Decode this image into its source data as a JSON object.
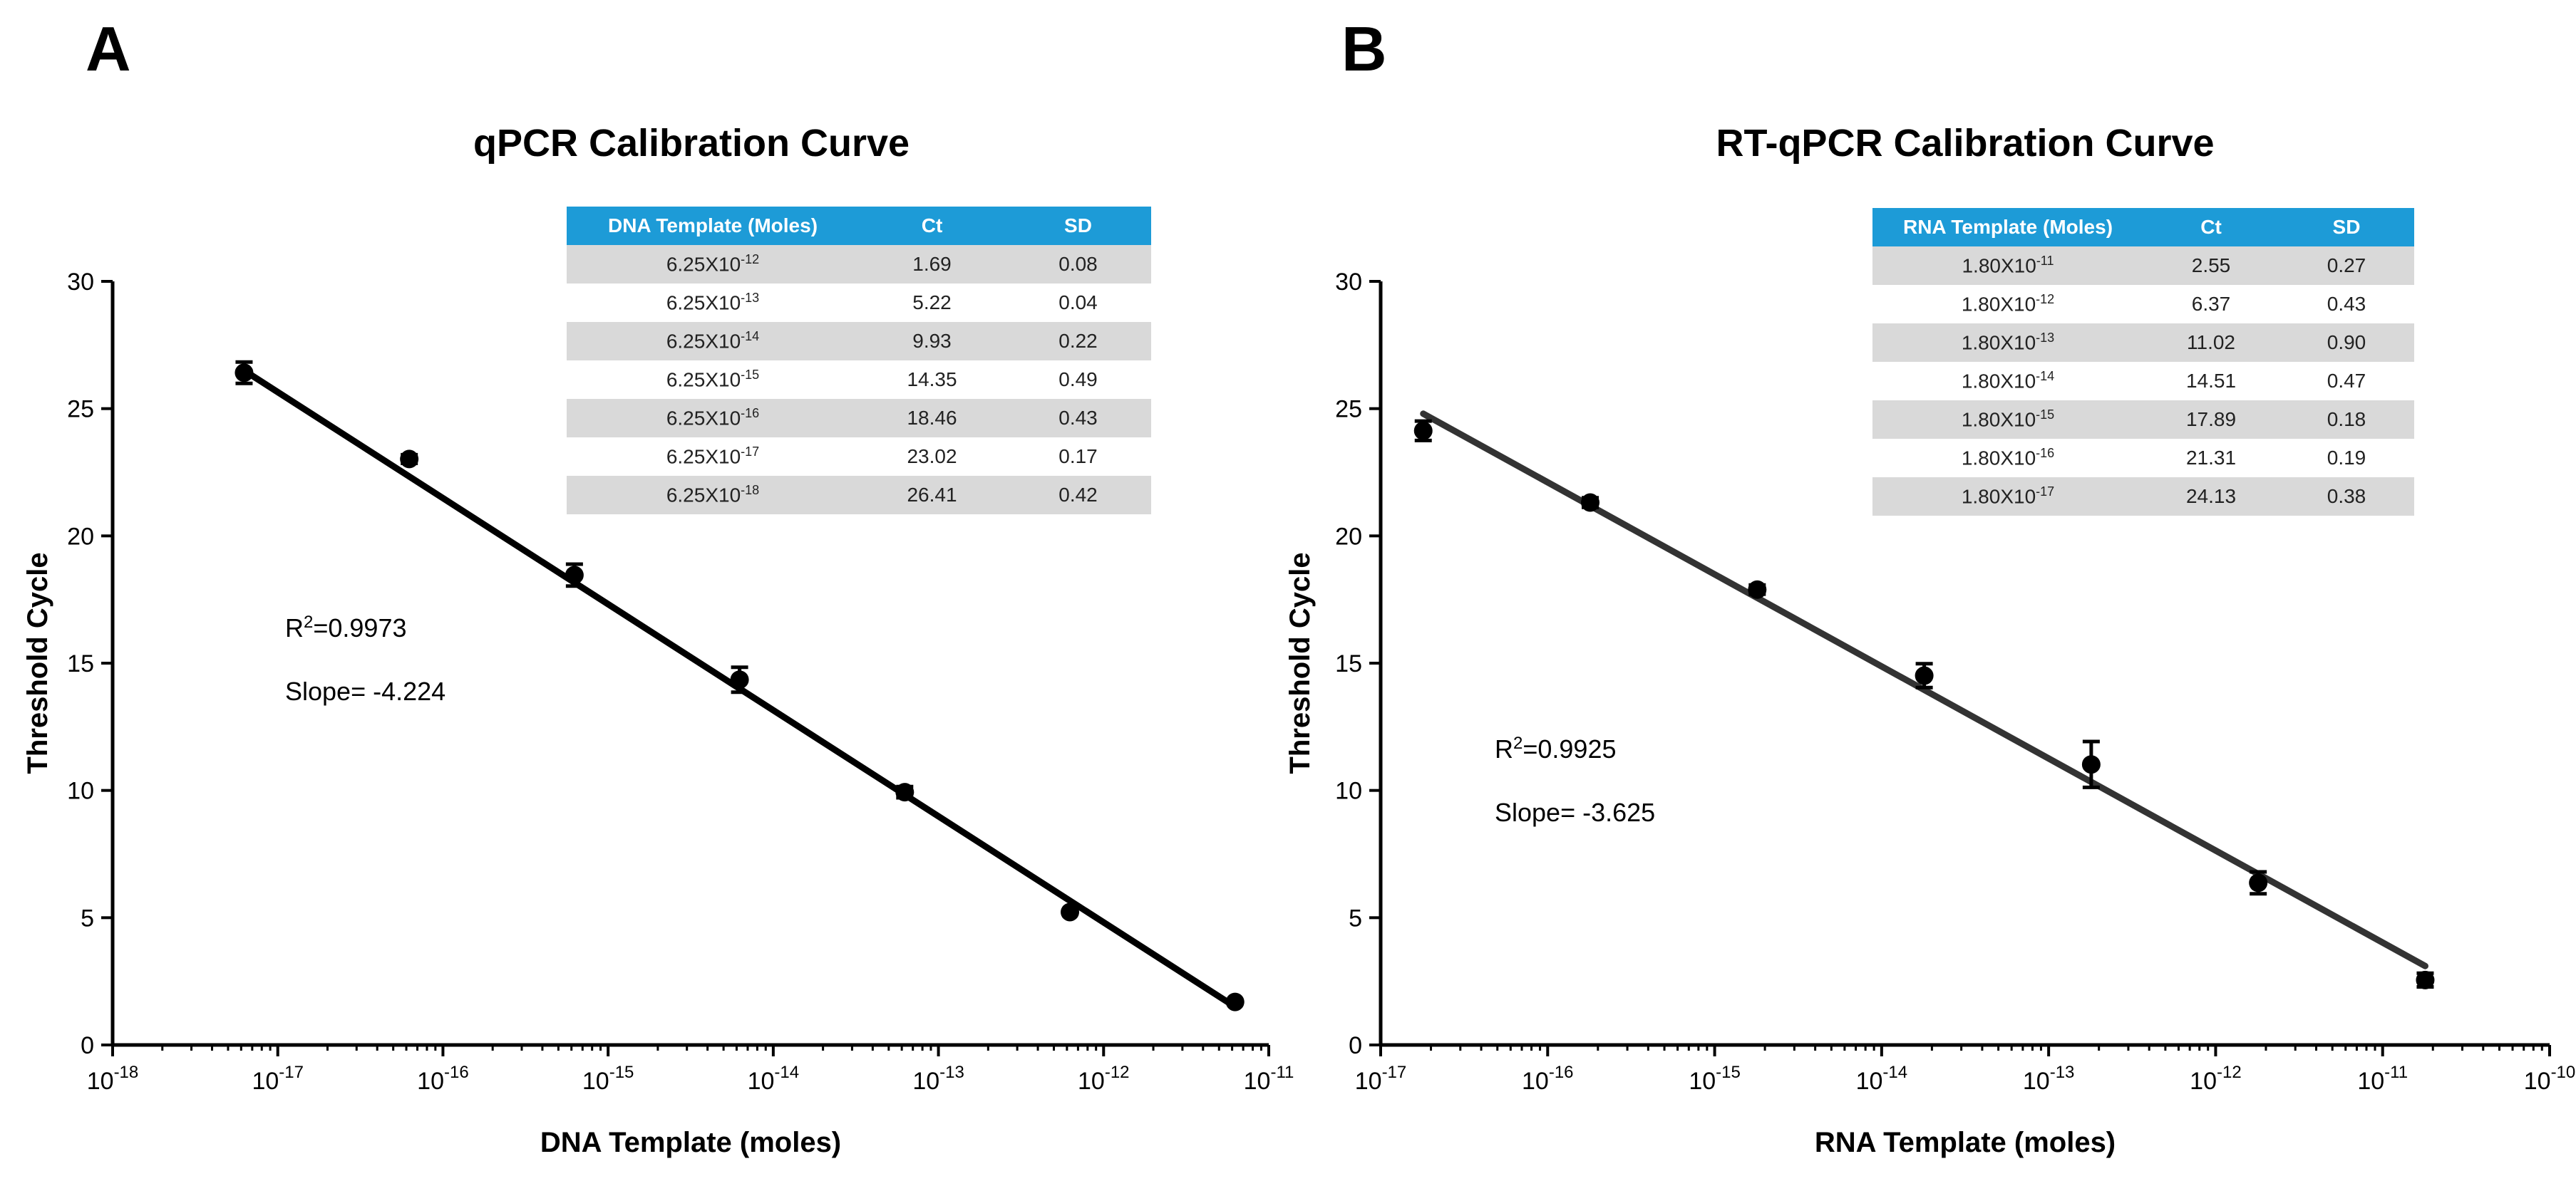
{
  "panels": [
    {
      "letter": "A",
      "title": "qPCR Calibration Curve",
      "table": {
        "headers": [
          "DNA Template (Moles)",
          "Ct",
          "SD"
        ],
        "rows": [
          {
            "mantissa": "6.25X10",
            "exp": "-12",
            "ct": "1.69",
            "sd": "0.08"
          },
          {
            "mantissa": "6.25X10",
            "exp": "-13",
            "ct": "5.22",
            "sd": "0.04"
          },
          {
            "mantissa": "6.25X10",
            "exp": "-14",
            "ct": "9.93",
            "sd": "0.22"
          },
          {
            "mantissa": "6.25X10",
            "exp": "-15",
            "ct": "14.35",
            "sd": "0.49"
          },
          {
            "mantissa": "6.25X10",
            "exp": "-16",
            "ct": "18.46",
            "sd": "0.43"
          },
          {
            "mantissa": "6.25X10",
            "exp": "-17",
            "ct": "23.02",
            "sd": "0.17"
          },
          {
            "mantissa": "6.25X10",
            "exp": "-18",
            "ct": "26.41",
            "sd": "0.42"
          }
        ]
      },
      "stats": {
        "r2_prefix": "R",
        "r2_sup": "2",
        "r2_value": "=0.9973",
        "slope": "Slope= -4.224"
      }
    },
    {
      "letter": "B",
      "title": "RT-qPCR Calibration Curve",
      "table": {
        "headers": [
          "RNA Template (Moles)",
          "Ct",
          "SD"
        ],
        "rows": [
          {
            "mantissa": "1.80X10",
            "exp": "-11",
            "ct": "2.55",
            "sd": "0.27"
          },
          {
            "mantissa": "1.80X10",
            "exp": "-12",
            "ct": "6.37",
            "sd": "0.43"
          },
          {
            "mantissa": "1.80X10",
            "exp": "-13",
            "ct": "11.02",
            "sd": "0.90"
          },
          {
            "mantissa": "1.80X10",
            "exp": "-14",
            "ct": "14.51",
            "sd": "0.47"
          },
          {
            "mantissa": "1.80X10",
            "exp": "-15",
            "ct": "17.89",
            "sd": "0.18"
          },
          {
            "mantissa": "1.80X10",
            "exp": "-16",
            "ct": "21.31",
            "sd": "0.19"
          },
          {
            "mantissa": "1.80X10",
            "exp": "-17",
            "ct": "24.13",
            "sd": "0.38"
          }
        ]
      },
      "stats": {
        "r2_prefix": "R",
        "r2_sup": "2",
        "r2_value": "=0.9925",
        "slope": "Slope= -3.625"
      }
    }
  ],
  "chart_data": [
    {
      "type": "scatter",
      "title": "qPCR Calibration Curve",
      "xlabel": "DNA Template (moles)",
      "ylabel": "Threshold Cycle",
      "xscale": "log",
      "xlim_exp": [
        -18,
        -11
      ],
      "x_tick_exps": [
        "-18",
        "-17",
        "-16",
        "-15",
        "-14",
        "-13",
        "-12",
        "-11"
      ],
      "ylim": [
        0,
        30
      ],
      "y_ticks": [
        0,
        5,
        10,
        15,
        20,
        25,
        30
      ],
      "points_log10x": [
        -17.204,
        -16.204,
        -15.204,
        -14.204,
        -13.204,
        -12.204,
        -11.204
      ],
      "y": [
        26.41,
        23.02,
        18.46,
        14.35,
        9.93,
        5.22,
        1.69
      ],
      "sd": [
        0.42,
        0.17,
        0.43,
        0.49,
        0.22,
        0.04,
        0.08
      ],
      "fit_line": {
        "x_start_log10": -17.204,
        "y_start": 26.5,
        "x_end_log10": -11.204,
        "y_end": 1.5
      },
      "color": "#000000"
    },
    {
      "type": "scatter",
      "title": "RT-qPCR Calibration Curve",
      "xlabel": "RNA Template (moles)",
      "ylabel": "Threshold Cycle",
      "xscale": "log",
      "xlim_exp": [
        -17,
        -10
      ],
      "x_tick_exps": [
        "-17",
        "-16",
        "-15",
        "-14",
        "-13",
        "-12",
        "-11",
        "-10"
      ],
      "ylim": [
        0,
        30
      ],
      "y_ticks": [
        0,
        5,
        10,
        15,
        20,
        25,
        30
      ],
      "points_log10x": [
        -16.745,
        -15.745,
        -14.745,
        -13.745,
        -12.745,
        -11.745,
        -10.745
      ],
      "y": [
        24.13,
        21.31,
        17.89,
        14.51,
        11.02,
        6.37,
        2.55
      ],
      "sd": [
        0.38,
        0.19,
        0.18,
        0.47,
        0.9,
        0.43,
        0.27
      ],
      "fit_line": {
        "x_start_log10": -16.745,
        "y_start": 24.8,
        "x_end_log10": -10.745,
        "y_end": 3.1
      },
      "color": "#333333"
    }
  ]
}
